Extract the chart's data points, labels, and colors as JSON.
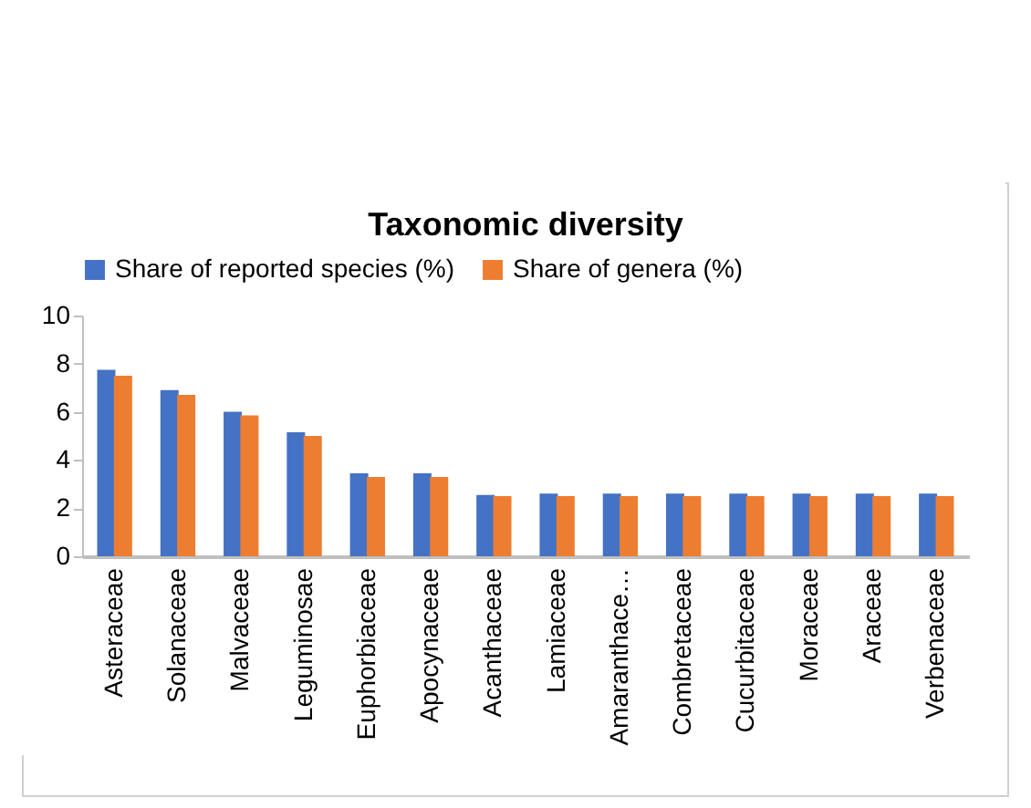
{
  "chart_data": {
    "type": "bar",
    "title": "Taxonomic diversity",
    "categories": [
      "Asteraceae",
      "Solanaceae",
      "Malvaceae",
      "Leguminosae",
      "Euphorbiaceae",
      "Apocynaceae",
      "Acanthaceae",
      "Lamiaceae",
      "Amaranthace…",
      "Combretaceae",
      "Cucurbitaceae",
      "Moraceae",
      "Araceae",
      "Verbenaceae"
    ],
    "series": [
      {
        "name": "Share of reported species (%)",
        "color": "#4472c4",
        "values": [
          7.75,
          6.9,
          6.0,
          5.15,
          3.45,
          3.45,
          2.55,
          2.6,
          2.6,
          2.6,
          2.6,
          2.6,
          2.6,
          2.6
        ]
      },
      {
        "name": "Share of genera (%)",
        "color": "#ed7d31",
        "values": [
          7.5,
          6.7,
          5.85,
          5.0,
          3.3,
          3.3,
          2.5,
          2.5,
          2.5,
          2.5,
          2.5,
          2.5,
          2.5,
          2.5
        ]
      }
    ],
    "ylim": [
      0,
      10
    ],
    "yticks": [
      0,
      2,
      4,
      6,
      8,
      10
    ],
    "grid": false,
    "legend": "top"
  }
}
